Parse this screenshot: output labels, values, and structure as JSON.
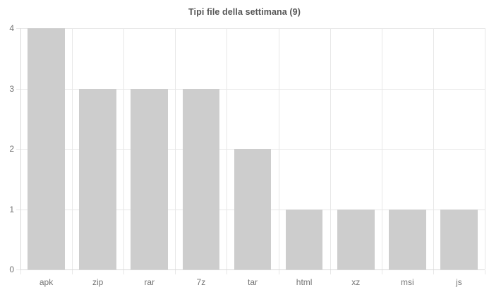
{
  "chart_data": {
    "type": "bar",
    "title": "Tipi file della settimana (9)",
    "categories": [
      "apk",
      "zip",
      "rar",
      "7z",
      "tar",
      "html",
      "xz",
      "msi",
      "js"
    ],
    "values": [
      4,
      3,
      3,
      3,
      2,
      1,
      1,
      1,
      1
    ],
    "xlabel": "",
    "ylabel": "",
    "ylim": [
      0,
      4
    ],
    "yticks": [
      0,
      1,
      2,
      3,
      4
    ],
    "grid": true,
    "legend": false,
    "bar_color": "#cdcdcd",
    "grid_color": "#e7e7e7",
    "axis_color": "#d8d8d8",
    "tick_label_color": "#757575",
    "title_color": "#575757",
    "background": "#ffffff"
  }
}
